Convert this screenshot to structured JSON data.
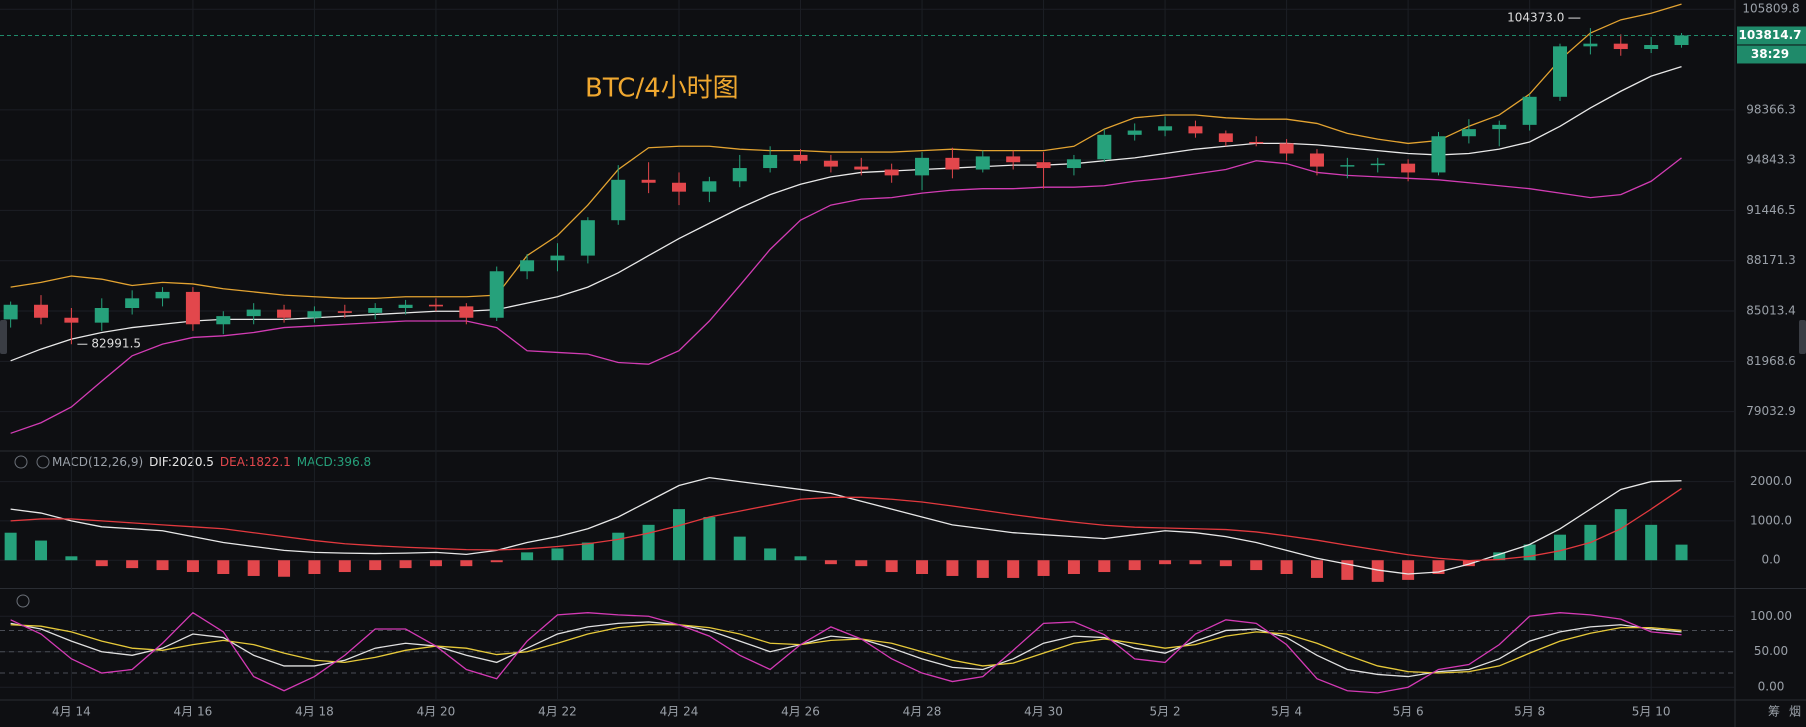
{
  "chart_data": [
    {
      "type": "candlestick",
      "title": "BTC/4小时图",
      "title_color": "#f0a830",
      "open": [
        84500,
        85400,
        84600,
        84300,
        85200,
        85800,
        86200,
        84200,
        84700,
        85100,
        84600,
        85000,
        84900,
        85200,
        85400,
        85300,
        84600,
        87500,
        88200,
        88500,
        90800,
        93500,
        93300,
        92700,
        93400,
        94300,
        95200,
        94800,
        94400,
        94200,
        93800,
        95000,
        94200,
        95100,
        94700,
        94300,
        94900,
        96600,
        96900,
        97200,
        96700,
        96100,
        96000,
        95300,
        94400,
        94500,
        94600,
        94000,
        96500,
        97000,
        97300,
        99300,
        103000,
        103200,
        102800,
        103100
      ],
      "high": [
        85600,
        86000,
        85200,
        85800,
        86300,
        86500,
        86500,
        85000,
        85500,
        85400,
        85300,
        85400,
        85500,
        85700,
        85800,
        85500,
        87800,
        88600,
        89300,
        91000,
        94500,
        94700,
        94000,
        93700,
        95200,
        95800,
        95600,
        95200,
        95000,
        94600,
        95400,
        95700,
        95500,
        95500,
        95400,
        95200,
        97000,
        97400,
        97900,
        97600,
        96900,
        96500,
        96300,
        95600,
        95000,
        95000,
        94900,
        96800,
        97700,
        97600,
        99500,
        103200,
        104373,
        103900,
        103700,
        104000
      ],
      "low": [
        84000,
        84200,
        82991.5,
        83800,
        84800,
        85300,
        83800,
        83600,
        84200,
        84300,
        84300,
        84600,
        84500,
        84800,
        85000,
        84200,
        84400,
        87000,
        87500,
        88000,
        90500,
        92600,
        91800,
        92000,
        93000,
        94000,
        94600,
        94000,
        93800,
        93300,
        92800,
        93600,
        94000,
        94200,
        92900,
        93800,
        94700,
        96200,
        96500,
        96400,
        95800,
        95800,
        94800,
        93800,
        93600,
        94000,
        93400,
        93800,
        96000,
        95800,
        96900,
        99000,
        102400,
        102300,
        102500,
        102900
      ],
      "close": [
        85400,
        84600,
        84300,
        85200,
        85800,
        86200,
        84200,
        84700,
        85100,
        84600,
        85000,
        84900,
        85200,
        85400,
        85300,
        84600,
        87500,
        88200,
        88500,
        90800,
        93500,
        93300,
        92700,
        93400,
        94300,
        95200,
        94800,
        94400,
        94200,
        93800,
        95000,
        94200,
        95100,
        94700,
        94300,
        94900,
        96600,
        96900,
        97200,
        96700,
        96100,
        96000,
        95300,
        94400,
        94500,
        94600,
        94000,
        96500,
        97000,
        97300,
        99300,
        103000,
        103200,
        102800,
        103100,
        103814.7
      ],
      "up_color": "#26a17b",
      "down_color": "#e2474c",
      "series": [
        {
          "color": "#e3a331",
          "values": [
            86500,
            86800,
            87200,
            87000,
            86600,
            86800,
            86700,
            86400,
            86200,
            86000,
            85900,
            85800,
            85800,
            85900,
            85900,
            85900,
            86000,
            88500,
            89800,
            91800,
            94200,
            95700,
            95800,
            95800,
            95600,
            95500,
            95500,
            95400,
            95400,
            95400,
            95500,
            95600,
            95500,
            95500,
            95500,
            95800,
            97000,
            97800,
            98000,
            98000,
            97800,
            97700,
            97700,
            97400,
            96700,
            96300,
            96000,
            96200,
            97200,
            98000,
            99500,
            102000,
            104000,
            105000,
            105500,
            106200
          ]
        },
        {
          "color": "#e8e8e8",
          "values": [
            82000,
            82700,
            83300,
            83700,
            84000,
            84200,
            84400,
            84500,
            84500,
            84500,
            84600,
            84700,
            84800,
            84900,
            85000,
            85000,
            85100,
            85500,
            85900,
            86500,
            87400,
            88500,
            89600,
            90600,
            91600,
            92500,
            93200,
            93700,
            94000,
            94100,
            94200,
            94300,
            94400,
            94500,
            94500,
            94600,
            94800,
            95000,
            95300,
            95600,
            95800,
            96000,
            96000,
            95900,
            95700,
            95500,
            95300,
            95200,
            95300,
            95600,
            96100,
            97200,
            98500,
            99700,
            100800,
            101500
          ]
        },
        {
          "color": "#d23cb4",
          "values": [
            77800,
            78400,
            79300,
            80800,
            82300,
            83000,
            83400,
            83500,
            83700,
            84000,
            84100,
            84200,
            84300,
            84400,
            84400,
            84400,
            84000,
            82600,
            82500,
            82400,
            81900,
            81800,
            82600,
            84400,
            86600,
            88900,
            90800,
            91800,
            92200,
            92300,
            92600,
            92800,
            92900,
            92900,
            93000,
            93000,
            93100,
            93400,
            93600,
            93900,
            94200,
            94800,
            94600,
            94000,
            93800,
            93700,
            93600,
            93500,
            93300,
            93100,
            92900,
            92600,
            92300,
            92500,
            93400,
            95000
          ]
        }
      ],
      "ylim": [
        76920,
        106520
      ],
      "log_scale": true,
      "yticks": [
        105809.8,
        98366.3,
        94843.3,
        91446.5,
        88171.3,
        85013.4,
        81968.6,
        79032.9
      ],
      "xlim": [
        -0.35,
        56.76
      ],
      "xticks": [
        {
          "value": 2,
          "label": "4月 14"
        },
        {
          "value": 6,
          "label": "4月 16"
        },
        {
          "value": 10,
          "label": "4月 18"
        },
        {
          "value": 14,
          "label": "4月 20"
        },
        {
          "value": 18,
          "label": "4月 22"
        },
        {
          "value": 22,
          "label": "4月 24"
        },
        {
          "value": 26,
          "label": "4月 26"
        },
        {
          "value": 30,
          "label": "4月 28"
        },
        {
          "value": 34,
          "label": "4月 30"
        },
        {
          "value": 38,
          "label": "5月 2"
        },
        {
          "value": 42,
          "label": "5月 4"
        },
        {
          "value": 46,
          "label": "5月 6"
        },
        {
          "value": 50,
          "label": "5月 8"
        },
        {
          "value": 54,
          "label": "5月 10"
        }
      ],
      "grid": true,
      "last_price": 103814.7,
      "last_price_color": "#1f8a6a",
      "countdown": "38:29",
      "annotations": [
        {
          "value": 104373.0,
          "label": "104373.0"
        },
        {
          "value": 82991.5,
          "label": "82991.5"
        }
      ]
    },
    {
      "type": "macd",
      "label": "MACD(12,26,9)",
      "legend": [
        {
          "label": "DIF:2020.5",
          "color": "#e8e8e8"
        },
        {
          "label": "DEA:1822.1",
          "color": "#e2474c"
        },
        {
          "label": "MACD:396.8",
          "color": "#26a17b"
        }
      ],
      "series": [
        {
          "color": "#e8e8e8",
          "values": [
            1300,
            1200,
            1000,
            850,
            800,
            750,
            600,
            450,
            350,
            250,
            200,
            180,
            170,
            180,
            200,
            150,
            250,
            450,
            600,
            800,
            1100,
            1500,
            1900,
            2100,
            2000,
            1900,
            1800,
            1700,
            1500,
            1300,
            1100,
            900,
            800,
            700,
            650,
            600,
            550,
            650,
            750,
            700,
            600,
            450,
            250,
            50,
            -100,
            -250,
            -350,
            -300,
            -100,
            150,
            400,
            800,
            1300,
            1800,
            2000,
            2020.5
          ]
        },
        {
          "color": "#e2393e",
          "values": [
            1000,
            1050,
            1050,
            1000,
            950,
            900,
            850,
            800,
            700,
            600,
            500,
            420,
            370,
            330,
            300,
            270,
            260,
            290,
            350,
            420,
            530,
            690,
            880,
            1100,
            1250,
            1400,
            1550,
            1600,
            1600,
            1550,
            1480,
            1380,
            1270,
            1160,
            1060,
            970,
            890,
            840,
            820,
            800,
            780,
            720,
            620,
            510,
            380,
            260,
            140,
            50,
            -10,
            20,
            100,
            240,
            450,
            800,
            1300,
            1822.1
          ]
        }
      ],
      "histogram": {
        "up_color": "#26a17b",
        "down_color": "#e2474c",
        "values": [
          700,
          500,
          100,
          -150,
          -200,
          -250,
          -300,
          -350,
          -400,
          -420,
          -350,
          -300,
          -250,
          -200,
          -150,
          -150,
          -50,
          200,
          300,
          450,
          700,
          900,
          1300,
          1100,
          600,
          300,
          100,
          -100,
          -150,
          -300,
          -350,
          -400,
          -450,
          -450,
          -400,
          -350,
          -300,
          -250,
          -100,
          -100,
          -150,
          -250,
          -350,
          -450,
          -500,
          -550,
          -500,
          -350,
          -150,
          200,
          400,
          650,
          900,
          1300,
          900,
          396.8
        ]
      },
      "ylim": [
        -706,
        2676
      ],
      "yticks": [
        {
          "value": 2000,
          "label": "2000.0"
        },
        {
          "value": 1000,
          "label": "1000.0"
        },
        {
          "value": 0,
          "label": "0.0"
        }
      ],
      "grid": true
    },
    {
      "type": "line",
      "series": [
        {
          "color": "#e0e0e0",
          "values": [
            90,
            82,
            65,
            50,
            45,
            55,
            75,
            70,
            45,
            30,
            30,
            38,
            55,
            62,
            58,
            45,
            35,
            55,
            75,
            85,
            90,
            92,
            88,
            80,
            65,
            50,
            60,
            72,
            68,
            55,
            40,
            28,
            25,
            40,
            62,
            72,
            70,
            55,
            48,
            65,
            80,
            82,
            70,
            45,
            25,
            18,
            15,
            22,
            25,
            40,
            65,
            78,
            85,
            88,
            82,
            78
          ]
        },
        {
          "color": "#e6c93a",
          "values": [
            88,
            86,
            78,
            65,
            55,
            52,
            60,
            66,
            60,
            48,
            38,
            35,
            42,
            52,
            58,
            55,
            46,
            50,
            62,
            75,
            84,
            88,
            88,
            84,
            75,
            62,
            60,
            66,
            68,
            62,
            50,
            38,
            30,
            34,
            48,
            62,
            68,
            62,
            55,
            60,
            72,
            78,
            75,
            62,
            45,
            30,
            22,
            20,
            22,
            30,
            48,
            65,
            76,
            84,
            84,
            80
          ]
        },
        {
          "color": "#d43ab5",
          "values": [
            95,
            75,
            40,
            20,
            25,
            62,
            105,
            78,
            15,
            -5,
            15,
            45,
            82,
            82,
            58,
            25,
            12,
            65,
            102,
            105,
            102,
            100,
            88,
            72,
            45,
            25,
            60,
            85,
            68,
            40,
            20,
            8,
            15,
            52,
            90,
            92,
            74,
            40,
            35,
            75,
            95,
            90,
            60,
            12,
            -5,
            -8,
            0,
            25,
            32,
            60,
            100,
            105,
            102,
            96,
            78,
            74
          ]
        }
      ],
      "ylim": [
        -18,
        137
      ],
      "yticks": [
        {
          "value": 100,
          "label": "100.00"
        },
        {
          "value": 50,
          "label": "50.00"
        },
        {
          "value": 0,
          "label": "0.00"
        }
      ],
      "levels": [
        80,
        50,
        20
      ],
      "grid": true
    }
  ],
  "toolbar": [
    "筹",
    "烟"
  ]
}
